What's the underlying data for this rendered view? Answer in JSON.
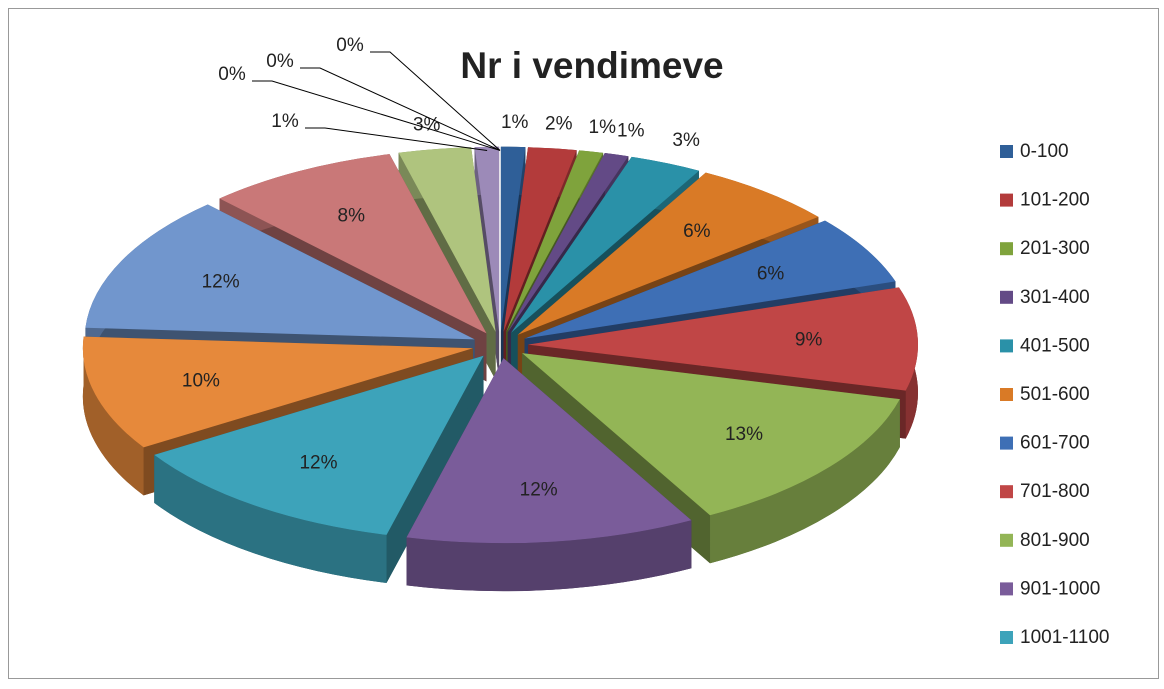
{
  "chart_data": {
    "type": "pie",
    "title": "Nr i vendimeve",
    "categories": [
      "0-100",
      "101-200",
      "201-300",
      "301-400",
      "401-500",
      "501-600",
      "601-700",
      "701-800",
      "801-900",
      "901-1000",
      "1001-1100",
      null,
      null,
      null,
      null,
      null,
      null,
      null,
      null
    ],
    "values": [
      1,
      2,
      1,
      1,
      3,
      6,
      6,
      9,
      13,
      12,
      12,
      10,
      12,
      8,
      3,
      1,
      0,
      0,
      0
    ],
    "value_labels": [
      "1%",
      "2%",
      "1%",
      "1%",
      "3%",
      "6%",
      "6%",
      "9%",
      "13%",
      "12%",
      "12%",
      "10%",
      "12%",
      "8%",
      "3%",
      "1%",
      "0%",
      "0%",
      "0%"
    ],
    "colors": [
      "#2F5F98",
      "#B33B3B",
      "#7FA33C",
      "#634A86",
      "#2A91A8",
      "#D97A26",
      "#3E6FB5",
      "#C04646",
      "#93B556",
      "#7A5C9A",
      "#3DA3BA",
      "#E6893B",
      "#7196CD",
      "#C97878",
      "#AFC47E",
      "#9C8AB8",
      "#7FC3D3",
      "#F0AE78",
      "#9DB4DB"
    ],
    "legend": "right"
  }
}
